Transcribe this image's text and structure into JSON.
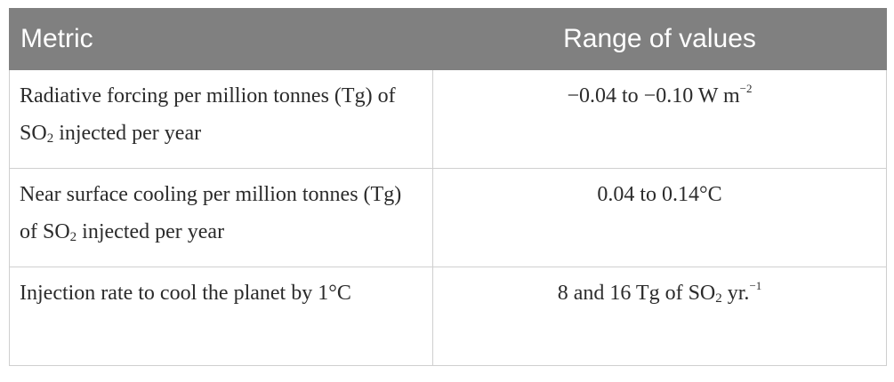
{
  "table": {
    "headers": {
      "metric": "Metric",
      "range": "Range of values"
    },
    "rows": [
      {
        "metric_pre": "Radiative forcing per million tonnes (Tg) of SO",
        "metric_sub": "2",
        "metric_post": " injected per year",
        "range_pre": "−0.04 to −0.10 W m",
        "range_sup": "−2",
        "range_post": ""
      },
      {
        "metric_pre": "Near surface cooling per million tonnes (Tg) of SO",
        "metric_sub": "2",
        "metric_post": " injected per year",
        "range_pre": "0.04 to 0.14°C",
        "range_sup": "",
        "range_post": ""
      },
      {
        "metric_pre": "Injection rate to cool the planet by 1°C",
        "metric_sub": "",
        "metric_post": "",
        "range_pre": "8 and 16 Tg of SO",
        "range_sub": "2",
        "range_mid": " yr.",
        "range_sup": "−1"
      }
    ]
  }
}
